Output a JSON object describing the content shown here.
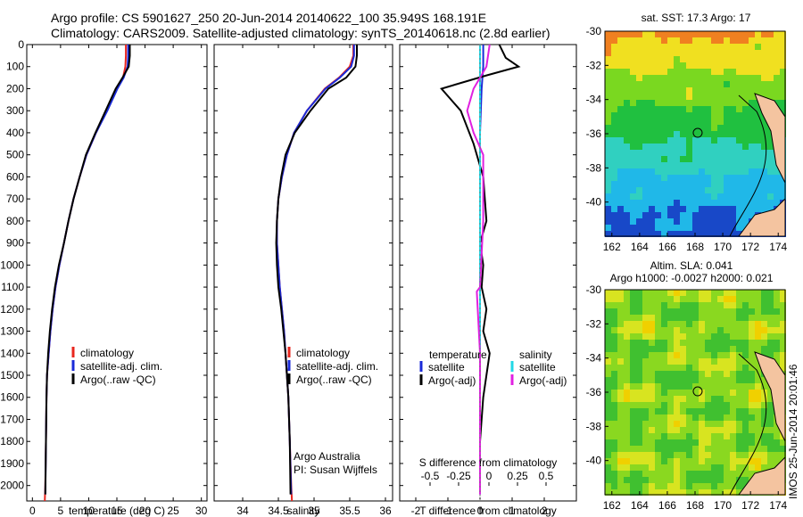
{
  "titles": {
    "line1": "Argo profile: CS 5901627_250 20-Jun-2014 20140622_100 35.949S 168.191E",
    "line2": "Climatology: CARS2009. Satellite-adjusted climatology: synTS_20140618.nc (2.8d earlier)"
  },
  "colors": {
    "climatology": "#e8261e",
    "satellite": "#1a2ad8",
    "argo": "#000000",
    "satellite_s": "#22d8e6",
    "argo_adj_s": "#e020e0",
    "land": "#f4c4a0"
  },
  "chart_data": [
    {
      "type": "line",
      "id": "temperature",
      "xlabel": "temperature (deg C)",
      "xlim": [
        -1,
        31
      ],
      "xticks": [
        0,
        5,
        10,
        15,
        20,
        25,
        30
      ],
      "ylim": [
        2070,
        0
      ],
      "yticks": [
        0,
        100,
        200,
        300,
        400,
        500,
        600,
        700,
        800,
        900,
        1000,
        1100,
        1200,
        1300,
        1400,
        1500,
        1600,
        1700,
        1800,
        1900,
        2000
      ],
      "series": [
        {
          "name": "climatology",
          "color": "#e8261e",
          "x": [
            16.6,
            16.6,
            16.5,
            16.1,
            15.0,
            13.2,
            11.3,
            9.6,
            8.4,
            7.3,
            6.4,
            5.6,
            4.8,
            4.1,
            3.6,
            3.2,
            2.9,
            2.6,
            2.5,
            2.4,
            2.3,
            2.2
          ],
          "y": [
            0,
            50,
            100,
            150,
            200,
            300,
            400,
            500,
            600,
            700,
            800,
            900,
            1000,
            1100,
            1200,
            1300,
            1400,
            1500,
            1600,
            1800,
            2000,
            2070
          ]
        },
        {
          "name": "satellite-adj. clim.",
          "color": "#1a2ad8",
          "x": [
            17.0,
            17.0,
            16.9,
            16.2,
            15.1,
            13.3,
            11.3,
            9.6,
            8.4,
            7.3,
            6.4,
            5.6,
            4.8,
            4.1,
            3.6,
            3.2,
            2.9,
            2.6,
            2.5,
            2.4,
            2.3
          ],
          "y": [
            0,
            50,
            100,
            150,
            200,
            300,
            400,
            500,
            600,
            700,
            800,
            900,
            1000,
            1100,
            1200,
            1300,
            1400,
            1500,
            1600,
            1800,
            2040
          ]
        },
        {
          "name": "Argo(..raw -QC)",
          "color": "#000000",
          "x": [
            17.3,
            17.3,
            17.1,
            16.0,
            14.8,
            13.0,
            11.2,
            9.5,
            8.4,
            7.3,
            6.4,
            5.6,
            4.7,
            4.0,
            3.5,
            3.1,
            2.8,
            2.6,
            2.5,
            2.4,
            2.3
          ],
          "y": [
            0,
            50,
            100,
            150,
            200,
            300,
            400,
            500,
            600,
            700,
            800,
            900,
            1000,
            1100,
            1200,
            1300,
            1400,
            1500,
            1600,
            1800,
            2040
          ]
        }
      ],
      "legend": [
        "climatology",
        "satellite-adj. clim.",
        "Argo(..raw -QC)"
      ]
    },
    {
      "type": "line",
      "id": "salinity",
      "xlabel": "salinity",
      "xlim": [
        33.6,
        36.1
      ],
      "xticks": [
        34,
        34.5,
        35,
        35.5,
        36
      ],
      "ylim": [
        2070,
        0
      ],
      "series": [
        {
          "name": "climatology",
          "color": "#e8261e",
          "x": [
            35.55,
            35.55,
            35.5,
            35.35,
            35.15,
            34.9,
            34.72,
            34.62,
            34.55,
            34.5,
            34.48,
            34.48,
            34.5,
            34.52,
            34.55,
            34.58,
            34.6,
            34.62,
            34.64,
            34.66,
            34.68,
            34.69
          ],
          "y": [
            0,
            50,
            100,
            150,
            200,
            300,
            400,
            500,
            600,
            700,
            800,
            900,
            1000,
            1100,
            1200,
            1300,
            1400,
            1500,
            1600,
            1800,
            2000,
            2070
          ]
        },
        {
          "name": "satellite-adj. clim.",
          "color": "#1a2ad8",
          "x": [
            35.56,
            35.56,
            35.52,
            35.36,
            35.16,
            34.9,
            34.72,
            34.62,
            34.55,
            34.5,
            34.48,
            34.48,
            34.5,
            34.52,
            34.55,
            34.58,
            34.6,
            34.62,
            34.64,
            34.66,
            34.68
          ],
          "y": [
            0,
            50,
            100,
            150,
            200,
            300,
            400,
            500,
            600,
            700,
            800,
            900,
            1000,
            1100,
            1200,
            1300,
            1400,
            1500,
            1600,
            1800,
            2040
          ]
        },
        {
          "name": "Argo(..raw -QC)",
          "color": "#000000",
          "x": [
            35.6,
            35.6,
            35.58,
            35.45,
            35.2,
            34.95,
            34.73,
            34.6,
            34.54,
            34.5,
            34.48,
            34.47,
            34.48,
            34.5,
            34.54,
            34.57,
            34.6,
            34.62,
            34.64,
            34.66,
            34.67
          ],
          "y": [
            0,
            50,
            100,
            150,
            200,
            300,
            400,
            500,
            600,
            700,
            800,
            900,
            1000,
            1100,
            1200,
            1300,
            1400,
            1500,
            1600,
            1800,
            2040
          ]
        }
      ],
      "legend": [
        "climatology",
        "satellite-adj. clim.",
        "Argo(..raw -QC)"
      ],
      "annotations": [
        "Argo Australia",
        "PI: Susan Wijffels"
      ]
    },
    {
      "type": "line",
      "id": "difference",
      "xlabel": "T difference from climatology",
      "xlabel_top": "S difference from climatology",
      "xlim": [
        -2.5,
        3.0
      ],
      "xticks": [
        -2,
        -1,
        0,
        1,
        2
      ],
      "top_ticks": [
        "-0.5",
        "-0.25",
        "0",
        "0.25",
        "0.5"
      ],
      "ylim": [
        2070,
        0
      ],
      "series": [
        {
          "name": "temperature satellite",
          "color": "#1a2ad8",
          "x": [
            0.1,
            0.1,
            0.05,
            0.0,
            0.0,
            0.0,
            0.0,
            0.0,
            0.0,
            0.0,
            0.0,
            0.0
          ],
          "y": [
            0,
            100,
            200,
            400,
            600,
            800,
            1000,
            1200,
            1400,
            1600,
            1800,
            2040
          ]
        },
        {
          "name": "temperature Argo(-adj)",
          "color": "#000000",
          "x": [
            0.6,
            0.8,
            1.2,
            0.2,
            -1.2,
            -0.6,
            -0.2,
            0.1,
            0.2,
            0.0,
            0.1,
            0.05,
            0.2,
            0.1,
            0.3,
            0.2,
            0.1,
            0.0,
            0.0,
            0.0
          ],
          "y": [
            0,
            60,
            100,
            140,
            200,
            300,
            450,
            600,
            800,
            900,
            1000,
            1100,
            1200,
            1300,
            1400,
            1500,
            1600,
            1800,
            1950,
            2040
          ]
        },
        {
          "name": "salinity satellite",
          "color": "#22d8e6",
          "x": [
            0.0,
            0.0,
            0.0,
            0.0,
            0.0,
            0.0,
            0.0,
            0.0,
            0.0,
            0.0
          ],
          "y": [
            0,
            200,
            400,
            600,
            800,
            1000,
            1200,
            1400,
            1800,
            2040
          ]
        },
        {
          "name": "salinity Argo(-adj)",
          "color": "#e020e0",
          "x": [
            0.3,
            0.2,
            -0.2,
            -0.4,
            -0.2,
            0.1,
            0.1,
            0.0,
            -0.1,
            0.0,
            0.0
          ],
          "y": [
            0,
            100,
            200,
            300,
            400,
            500,
            800,
            1100,
            1120,
            1400,
            2040
          ]
        }
      ],
      "legend_groups": [
        {
          "heading": "temperature",
          "items": [
            "satellite",
            "Argo(-adj)"
          ]
        },
        {
          "heading": "salinity",
          "items": [
            "satellite",
            "Argo(-adj)"
          ]
        }
      ]
    },
    {
      "type": "heatmap",
      "id": "sst_map",
      "title": "sat. SST: 17.3 Argo: 17",
      "xlim": [
        161.5,
        174.5
      ],
      "ylim": [
        -42,
        -30
      ],
      "xticks": [
        162,
        164,
        166,
        168,
        170,
        172,
        174
      ],
      "yticks": [
        -30,
        -32,
        -34,
        -36,
        -38,
        -40
      ],
      "marker": {
        "lon": 168.191,
        "lat": -35.949
      }
    },
    {
      "type": "heatmap",
      "id": "sla_map",
      "title": "Altim. SLA: 0.041",
      "subtitle": "Argo h1000: -0.0027 h2000: 0.021",
      "xlim": [
        161.5,
        174.5
      ],
      "ylim": [
        -42,
        -30
      ],
      "xticks": [
        162,
        164,
        166,
        168,
        170,
        172,
        174
      ],
      "yticks": [
        -30,
        -32,
        -34,
        -36,
        -38,
        -40
      ],
      "marker": {
        "lon": 168.191,
        "lat": -35.949
      }
    }
  ],
  "watermark": "IMOS 25-Jun-2014 20:01:46"
}
